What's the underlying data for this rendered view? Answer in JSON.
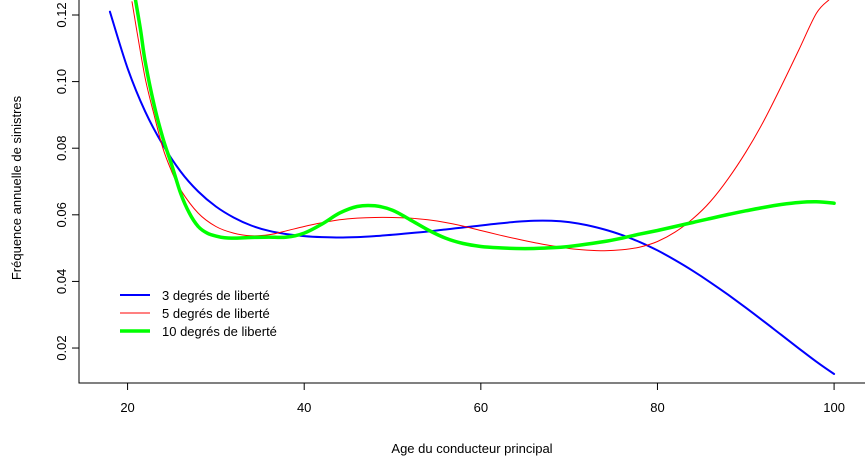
{
  "chart_data": {
    "type": "line",
    "title": "",
    "xlabel": "Age du conducteur principal",
    "ylabel": "Fréquence annuelle de sinistres",
    "xlim": [
      14.5,
      103.5
    ],
    "ylim": [
      0.0095,
      0.1245
    ],
    "x_ticks": [
      20,
      40,
      60,
      80,
      100
    ],
    "y_ticks": [
      0.02,
      0.04,
      0.06,
      0.08,
      0.1,
      0.12
    ],
    "x_tick_labels": [
      "20",
      "40",
      "60",
      "80",
      "100"
    ],
    "y_tick_labels": [
      "0.02",
      "0.04",
      "0.06",
      "0.08",
      "0.10",
      "0.12"
    ],
    "grid": false,
    "legend_position": "bottom-left",
    "series": [
      {
        "name": "3 degrés de liberté",
        "color": "#0000ff",
        "line_width": 2,
        "x": [
          18,
          20,
          22,
          24,
          26,
          28,
          30,
          32,
          34,
          36,
          38,
          40,
          42,
          44,
          46,
          48,
          50,
          52,
          54,
          56,
          58,
          60,
          62,
          64,
          66,
          68,
          70,
          72,
          74,
          76,
          78,
          80,
          82,
          84,
          86,
          88,
          90,
          92,
          94,
          96,
          98,
          100
        ],
        "y": [
          0.121,
          0.104,
          0.091,
          0.081,
          0.073,
          0.067,
          0.0625,
          0.0592,
          0.0568,
          0.0552,
          0.0542,
          0.0536,
          0.0533,
          0.0532,
          0.0533,
          0.0536,
          0.054,
          0.0545,
          0.055,
          0.0556,
          0.0562,
          0.0568,
          0.0574,
          0.0579,
          0.0582,
          0.0582,
          0.0578,
          0.0569,
          0.0556,
          0.0539,
          0.0518,
          0.0493,
          0.0464,
          0.0432,
          0.0397,
          0.036,
          0.0321,
          0.0281,
          0.024,
          0.0199,
          0.0159,
          0.0122
        ]
      },
      {
        "name": "5 degrés de liberté",
        "color": "#ff0000",
        "line_width": 1,
        "x": [
          20.5,
          21,
          22,
          23,
          24,
          25,
          26,
          28,
          30,
          32,
          34,
          36,
          38,
          40,
          42,
          44,
          46,
          48,
          50,
          52,
          54,
          56,
          58,
          60,
          62,
          64,
          66,
          68,
          70,
          72,
          74,
          76,
          78,
          80,
          82,
          84,
          86,
          88,
          90,
          92,
          94,
          96,
          98,
          99.4
        ],
        "y": [
          0.124,
          0.116,
          0.101,
          0.09,
          0.08,
          0.073,
          0.0675,
          0.0605,
          0.0565,
          0.0545,
          0.0537,
          0.054,
          0.0552,
          0.0565,
          0.0576,
          0.0585,
          0.059,
          0.0592,
          0.0592,
          0.059,
          0.0585,
          0.0577,
          0.0566,
          0.0553,
          0.054,
          0.0528,
          0.0517,
          0.0507,
          0.0499,
          0.0494,
          0.0492,
          0.0495,
          0.0503,
          0.052,
          0.0548,
          0.0588,
          0.064,
          0.0708,
          0.0788,
          0.088,
          0.0985,
          0.1095,
          0.1205,
          0.1245
        ]
      },
      {
        "name": "10 degrés de liberté",
        "color": "#00ff00",
        "line_width": 3.5,
        "x": [
          20.9,
          21.5,
          22,
          23,
          24,
          25,
          26,
          27,
          28,
          29,
          30,
          31,
          32,
          34,
          36,
          38,
          40,
          42,
          44,
          46,
          48,
          50,
          52,
          54,
          56,
          58,
          60,
          62,
          64,
          66,
          68,
          70,
          72,
          74,
          76,
          78,
          80,
          82,
          84,
          86,
          88,
          90,
          92,
          94,
          96,
          98,
          100
        ],
        "y": [
          0.1245,
          0.115,
          0.106,
          0.093,
          0.083,
          0.075,
          0.0665,
          0.0605,
          0.0565,
          0.0545,
          0.0536,
          0.0531,
          0.053,
          0.0532,
          0.0533,
          0.0533,
          0.0545,
          0.0572,
          0.0605,
          0.0625,
          0.0627,
          0.0614,
          0.0585,
          0.0555,
          0.053,
          0.0514,
          0.0505,
          0.0501,
          0.0499,
          0.0499,
          0.0501,
          0.0505,
          0.0512,
          0.052,
          0.053,
          0.0542,
          0.0553,
          0.0565,
          0.0577,
          0.0589,
          0.0601,
          0.0612,
          0.0622,
          0.0631,
          0.0637,
          0.0639,
          0.0635
        ]
      }
    ]
  }
}
